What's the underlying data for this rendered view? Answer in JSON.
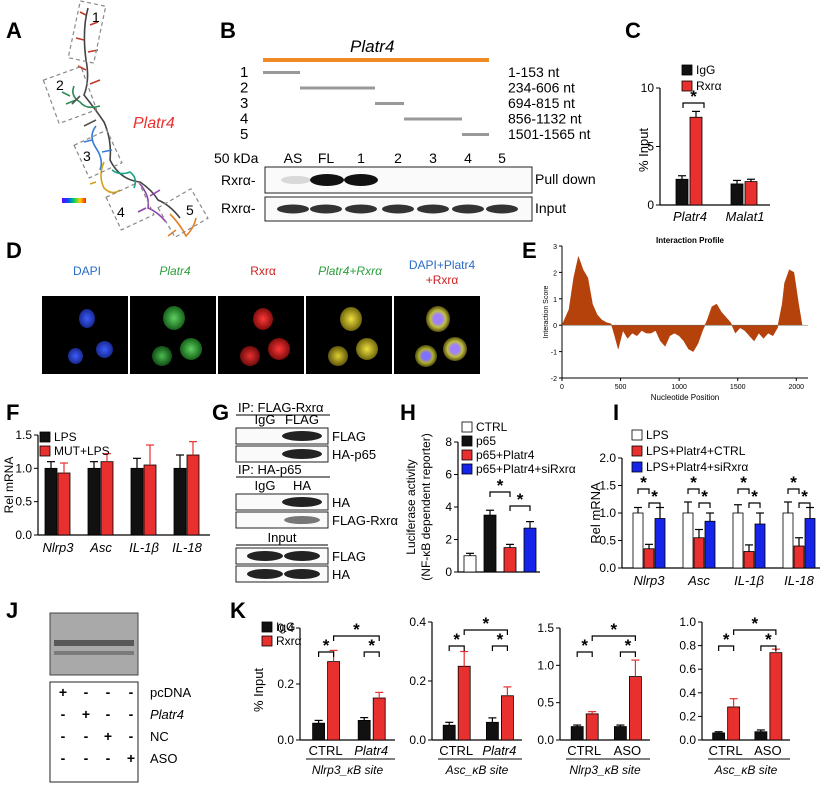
{
  "panel_labels": {
    "a": "A",
    "b": "B",
    "c": "C",
    "d": "D",
    "e": "E",
    "f": "F",
    "g": "G",
    "h": "H",
    "i": "I",
    "j": "J",
    "k": "K"
  },
  "panelA": {
    "gene_label": "Platr4",
    "boxes": [
      "1",
      "2",
      "3",
      "4",
      "5"
    ]
  },
  "panelB": {
    "title": "Platr4",
    "fragments": [
      {
        "num": "1",
        "range": "1-153 nt"
      },
      {
        "num": "2",
        "range": "234-606 nt"
      },
      {
        "num": "3",
        "range": "694-815 nt"
      },
      {
        "num": "4",
        "range": "856-1132 nt"
      },
      {
        "num": "5",
        "range": "1501-1565 nt"
      }
    ],
    "kda": "50 kDa",
    "lane_labels": [
      "AS",
      "FL",
      "1",
      "2",
      "3",
      "4",
      "5"
    ],
    "rows": [
      {
        "protein": "Rxrα-",
        "assay": "Pull down"
      },
      {
        "protein": "Rxrα-",
        "assay": "Input"
      }
    ]
  },
  "panelC": {
    "ylabel": "% Input",
    "legend": [
      "IgG",
      "Rxrα"
    ],
    "sig": "*",
    "chart_data": {
      "type": "bar",
      "categories": [
        "Platr4",
        "Malat1"
      ],
      "series": [
        {
          "name": "IgG",
          "values": [
            2.2,
            1.8
          ],
          "errors": [
            0.3,
            0.3
          ]
        },
        {
          "name": "Rxrα",
          "values": [
            7.5,
            2.0
          ],
          "errors": [
            0.5,
            0.2
          ]
        }
      ],
      "ylim": [
        0,
        10
      ],
      "yticks": [
        "0",
        "5",
        "10"
      ]
    }
  },
  "panelD": {
    "headings": [
      "DAPI",
      "Platr4",
      "Rxrα",
      "Platr4+Rxrα",
      "DAPI+Platr4",
      "+Rxrα"
    ]
  },
  "panelE": {
    "chart_data": {
      "type": "area",
      "title": "Interaction Profile",
      "xlabel": "Nucleotide Position",
      "ylabel": "Interaction Score",
      "xlim": [
        0,
        2100
      ],
      "ylim": [
        -2,
        3
      ],
      "xticks": [
        "0",
        "500",
        "1000",
        "1500",
        "2000"
      ],
      "yticks": [
        "-2",
        "-1",
        "0",
        "1",
        "2",
        "3"
      ],
      "x": [
        0,
        60,
        100,
        140,
        180,
        220,
        260,
        300,
        340,
        380,
        420,
        450,
        480,
        520,
        560,
        600,
        640,
        680,
        720,
        760,
        800,
        840,
        880,
        920,
        960,
        1000,
        1040,
        1080,
        1120,
        1160,
        1200,
        1240,
        1280,
        1320,
        1360,
        1400,
        1440,
        1480,
        1520,
        1560,
        1600,
        1640,
        1680,
        1720,
        1760,
        1800,
        1840,
        1880,
        1900,
        1940,
        1980,
        2020,
        2050
      ],
      "y": [
        0,
        0.6,
        1.8,
        2.6,
        2.1,
        1.8,
        0.8,
        0.4,
        0.2,
        0.1,
        0.05,
        -0.4,
        -0.9,
        -0.2,
        -0.5,
        -0.3,
        -0.4,
        -0.2,
        -0.3,
        -0.3,
        -0.2,
        -0.6,
        -0.8,
        -0.4,
        -0.3,
        -0.4,
        -0.6,
        -0.9,
        -1.0,
        -0.7,
        -0.2,
        0.2,
        0.7,
        0.8,
        0.5,
        0.3,
        0.1,
        -0.3,
        -0.1,
        -0.2,
        -0.4,
        -0.6,
        -0.3,
        -0.5,
        -0.3,
        -0.4,
        -0.1,
        0.8,
        1.6,
        2.1,
        2.0,
        0.8,
        0
      ]
    }
  },
  "panelF": {
    "ylabel": "Rel mRNA",
    "legend": [
      "LPS",
      "MUT+LPS"
    ],
    "chart_data": {
      "type": "bar",
      "categories": [
        "Nlrp3",
        "Asc",
        "IL-1β",
        "IL-18"
      ],
      "series": [
        {
          "name": "LPS",
          "values": [
            1.0,
            1.0,
            1.0,
            1.0
          ],
          "errors": [
            0.1,
            0.1,
            0.15,
            0.2
          ]
        },
        {
          "name": "MUT+LPS",
          "values": [
            0.93,
            1.1,
            1.05,
            1.2
          ],
          "errors": [
            0.15,
            0.12,
            0.3,
            0.2
          ]
        }
      ],
      "ylim": [
        0,
        1.5
      ],
      "yticks": [
        "0.0",
        "0.5",
        "1.0",
        "1.5"
      ]
    }
  },
  "panelG": {
    "ip1": "IP: FLAG-Rxrα",
    "lanes1": [
      "IgG",
      "FLAG"
    ],
    "rows1": [
      "FLAG",
      "HA-p65"
    ],
    "ip2": "IP: HA-p65",
    "lanes2": [
      "IgG",
      "HA"
    ],
    "rows2": [
      "HA",
      "FLAG-Rxrα"
    ],
    "input": "Input",
    "rows3": [
      "FLAG",
      "HA"
    ]
  },
  "panelH": {
    "ylabel": "Luciferase activity",
    "ylabel2": "(NF-κB dependent reporter)",
    "legend": [
      "CTRL",
      "p65",
      "p65+Platr4",
      "p65+Platr4+siRxrα"
    ],
    "chart_data": {
      "type": "bar",
      "categories": [
        "CTRL",
        "p65",
        "p65+Platr4",
        "p65+Platr4+siRxrα"
      ],
      "values": [
        1.0,
        3.5,
        1.5,
        2.7
      ],
      "errors": [
        0.15,
        0.3,
        0.2,
        0.4
      ],
      "ylim": [
        0,
        8
      ],
      "yticks": [
        "0",
        "2",
        "4",
        "6",
        "8"
      ]
    }
  },
  "panelI": {
    "ylabel": "Rel mRNA",
    "legend": [
      "LPS",
      "LPS+Platr4+CTRL",
      "LPS+Platr4+siRxrα"
    ],
    "chart_data": {
      "type": "bar",
      "categories": [
        "Nlrp3",
        "Asc",
        "IL-1β",
        "IL-18"
      ],
      "series": [
        {
          "name": "LPS",
          "values": [
            1.0,
            1.0,
            1.0,
            1.0
          ],
          "errors": [
            0.1,
            0.2,
            0.15,
            0.2
          ]
        },
        {
          "name": "LPS+Platr4+CTRL",
          "values": [
            0.35,
            0.55,
            0.3,
            0.4
          ],
          "errors": [
            0.08,
            0.15,
            0.12,
            0.15
          ]
        },
        {
          "name": "LPS+Platr4+siRxrα",
          "values": [
            0.9,
            0.85,
            0.8,
            0.9
          ],
          "errors": [
            0.2,
            0.15,
            0.2,
            0.2
          ]
        }
      ],
      "ylim": [
        0,
        2.0
      ],
      "yticks": [
        "0.0",
        "0.5",
        "1.0",
        "1.5",
        "2.0"
      ]
    }
  },
  "panelJ": {
    "rows": [
      {
        "marks": [
          "+",
          "-",
          "-",
          "-"
        ],
        "label": "pcDNA"
      },
      {
        "marks": [
          "-",
          "+",
          "-",
          "-"
        ],
        "label": "Platr4"
      },
      {
        "marks": [
          "-",
          "-",
          "+",
          "-"
        ],
        "label": "NC"
      },
      {
        "marks": [
          "-",
          "-",
          "-",
          "+"
        ],
        "label": "ASO"
      }
    ]
  },
  "panelK": {
    "ylabel": "% Input",
    "legend": [
      "IgG",
      "Rxrα"
    ],
    "chart_data": [
      {
        "type": "bar",
        "categories": [
          "CTRL",
          "Platr4"
        ],
        "xlabel": "Nlrp3_κB site",
        "ylim": [
          0,
          0.4
        ],
        "yticks": [
          "0.0",
          "0.2",
          "0.4"
        ],
        "series": [
          {
            "name": "IgG",
            "values": [
              0.06,
              0.07
            ],
            "errors": [
              0.01,
              0.01
            ]
          },
          {
            "name": "Rxrα",
            "values": [
              0.28,
              0.15
            ],
            "errors": [
              0.04,
              0.02
            ]
          }
        ]
      },
      {
        "type": "bar",
        "categories": [
          "CTRL",
          "Platr4"
        ],
        "xlabel": "Asc_κB site",
        "ylim": [
          0,
          0.4
        ],
        "yticks": [
          "0.0",
          "0.2",
          "0.4"
        ],
        "series": [
          {
            "name": "IgG",
            "values": [
              0.05,
              0.06
            ],
            "errors": [
              0.01,
              0.015
            ]
          },
          {
            "name": "Rxrα",
            "values": [
              0.25,
              0.15
            ],
            "errors": [
              0.05,
              0.03
            ]
          }
        ]
      },
      {
        "type": "bar",
        "categories": [
          "CTRL",
          "ASO"
        ],
        "xlabel": "Nlrp3_κB site",
        "ylim": [
          0,
          1.5
        ],
        "yticks": [
          "0.0",
          "0.5",
          "1.0",
          "1.5"
        ],
        "series": [
          {
            "name": "IgG",
            "values": [
              0.18,
              0.18
            ],
            "errors": [
              0.02,
              0.02
            ]
          },
          {
            "name": "Rxrα",
            "values": [
              0.35,
              0.85
            ],
            "errors": [
              0.03,
              0.22
            ]
          }
        ]
      },
      {
        "type": "bar",
        "categories": [
          "CTRL",
          "ASO"
        ],
        "xlabel": "Asc_κB site",
        "ylim": [
          0,
          1.0
        ],
        "yticks": [
          "0.0",
          "0.2",
          "0.4",
          "0.6",
          "0.8",
          "1.0"
        ],
        "series": [
          {
            "name": "IgG",
            "values": [
              0.06,
              0.07
            ],
            "errors": [
              0.01,
              0.015
            ]
          },
          {
            "name": "Rxrα",
            "values": [
              0.28,
              0.74
            ],
            "errors": [
              0.07,
              0.03
            ]
          }
        ]
      }
    ]
  },
  "sig_mark": "*",
  "colors": {
    "black": "#111111",
    "red": "#e8302e",
    "blue": "#1524e8",
    "white": "#ffffff",
    "orange": "#f08a24",
    "area": "#b5420b"
  }
}
